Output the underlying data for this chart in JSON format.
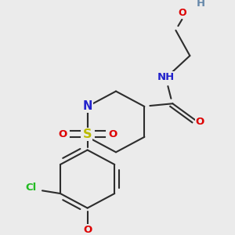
{
  "bg_color": "#ebebeb",
  "bond_color": "#2d2d2d",
  "bond_lw": 1.5,
  "atom_colors": {
    "O": "#dd0000",
    "N": "#2222cc",
    "S": "#bbbb00",
    "Cl": "#22bb22",
    "H": "#6688aa",
    "C": "#2d2d2d"
  },
  "fs": 9.5
}
